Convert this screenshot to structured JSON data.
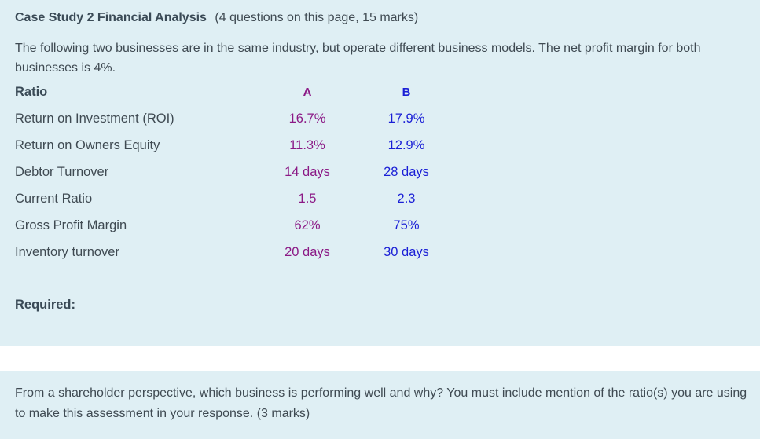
{
  "header": {
    "title": "Case Study 2 Financial Analysis",
    "note": "(4 questions on this page, 15 marks)"
  },
  "intro": "The following two businesses are in the same industry, but operate different business models. The net profit margin for both businesses is 4%.",
  "table": {
    "columns": [
      "Ratio",
      "A",
      "B"
    ],
    "rows": [
      {
        "label": "Return on Investment  (ROI)",
        "a": "16.7%",
        "b": "17.9%"
      },
      {
        "label": "Return on Owners Equity",
        "a": "11.3%",
        "b": "12.9%"
      },
      {
        "label": "Debtor Turnover",
        "a": "14 days",
        "b": "28 days"
      },
      {
        "label": "Current Ratio",
        "a": "1.5",
        "b": "2.3"
      },
      {
        "label": "Gross Profit Margin",
        "a": "62%",
        "b": "75%"
      },
      {
        "label": "Inventory turnover",
        "a": "20 days",
        "b": "30 days"
      }
    ]
  },
  "required_label": "Required:",
  "question": "From a shareholder perspective, which business is performing well and why? You must include mention of the ratio(s) you are using to make this assessment in your response. (3 marks)",
  "colors": {
    "panel_bg": "#dfeff4",
    "column_a": "#8b1a86",
    "column_b": "#1a1fd6",
    "text": "#3f4a52"
  }
}
